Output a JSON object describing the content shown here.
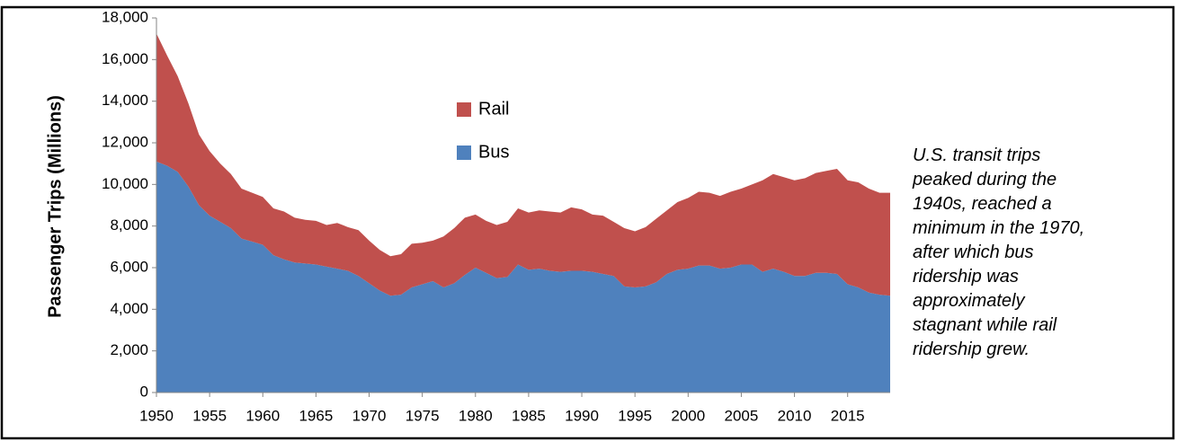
{
  "chart_data": {
    "type": "stacked-area",
    "y_label": "Passenger Trips (Millions)",
    "annotation": "U.S. transit trips peaked during the 1940s, reached a minimum in the 1970, after which bus ridership was approximately stagnant while rail ridership grew.",
    "x": [
      1950,
      1951,
      1952,
      1953,
      1954,
      1955,
      1956,
      1957,
      1958,
      1959,
      1960,
      1961,
      1962,
      1963,
      1964,
      1965,
      1966,
      1967,
      1968,
      1969,
      1970,
      1971,
      1972,
      1973,
      1974,
      1975,
      1976,
      1977,
      1978,
      1979,
      1980,
      1981,
      1982,
      1983,
      1984,
      1985,
      1986,
      1987,
      1988,
      1989,
      1990,
      1991,
      1992,
      1993,
      1994,
      1995,
      1996,
      1997,
      1998,
      1999,
      2000,
      2001,
      2002,
      2003,
      2004,
      2005,
      2006,
      2007,
      2008,
      2009,
      2010,
      2011,
      2012,
      2013,
      2014,
      2015,
      2016,
      2017,
      2018,
      2019
    ],
    "series": [
      {
        "name": "Bus",
        "color": "#4f81bd",
        "values": [
          11100,
          10900,
          10600,
          9900,
          9000,
          8500,
          8200,
          7900,
          7400,
          7250,
          7100,
          6600,
          6400,
          6250,
          6200,
          6150,
          6050,
          5950,
          5850,
          5600,
          5250,
          4900,
          4650,
          4700,
          5050,
          5200,
          5350,
          5050,
          5250,
          5650,
          6000,
          5750,
          5500,
          5550,
          6150,
          5900,
          5950,
          5850,
          5800,
          5850,
          5850,
          5800,
          5700,
          5600,
          5100,
          5050,
          5100,
          5300,
          5700,
          5900,
          5950,
          6100,
          6100,
          5950,
          6000,
          6150,
          6150,
          5800,
          5950,
          5800,
          5600,
          5600,
          5750,
          5750,
          5700,
          5200,
          5050,
          4800,
          4700,
          4650
        ]
      },
      {
        "name": "Rail",
        "color": "#c0504d",
        "values": [
          6150,
          5300,
          4600,
          4000,
          3400,
          3100,
          2800,
          2600,
          2400,
          2350,
          2300,
          2250,
          2300,
          2150,
          2100,
          2100,
          2000,
          2200,
          2100,
          2200,
          2050,
          1950,
          1900,
          1950,
          2100,
          2000,
          1950,
          2450,
          2650,
          2750,
          2550,
          2500,
          2550,
          2650,
          2700,
          2750,
          2800,
          2850,
          2850,
          3050,
          2950,
          2750,
          2800,
          2600,
          2800,
          2700,
          2850,
          3050,
          3050,
          3250,
          3400,
          3550,
          3500,
          3500,
          3650,
          3650,
          3850,
          4400,
          4550,
          4550,
          4600,
          4700,
          4800,
          4900,
          5050,
          5000,
          5050,
          5000,
          4900,
          4950
        ]
      }
    ],
    "xlim": [
      1950,
      2019
    ],
    "xticks": [
      1950,
      1955,
      1960,
      1965,
      1970,
      1975,
      1980,
      1985,
      1990,
      1995,
      2000,
      2005,
      2010,
      2015
    ],
    "ylim": [
      0,
      18000
    ],
    "yticks": [
      0,
      {
        "value": 2000,
        "label": "2,000"
      },
      {
        "value": 4000,
        "label": "4,000"
      },
      {
        "value": 6000,
        "label": "6,000"
      },
      {
        "value": 8000,
        "label": "8,000"
      },
      {
        "value": 10000,
        "label": "10,000"
      },
      {
        "value": 12000,
        "label": "12,000"
      },
      {
        "value": 14000,
        "label": "14,000"
      },
      {
        "value": 16000,
        "label": "16,000"
      },
      {
        "value": 18000,
        "label": "18,000"
      }
    ],
    "legend": "inside"
  }
}
